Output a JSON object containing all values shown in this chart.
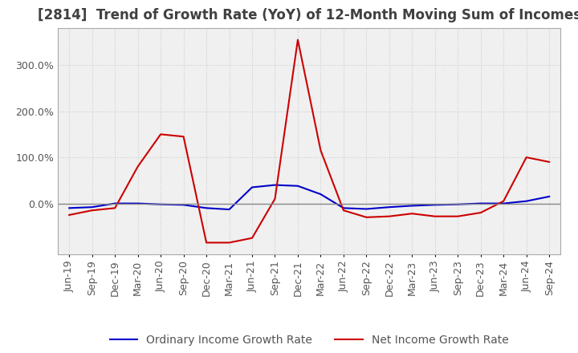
{
  "title": "[2814]  Trend of Growth Rate (YoY) of 12-Month Moving Sum of Incomes",
  "title_fontsize": 12,
  "background_color": "#ffffff",
  "plot_bg_color": "#f0f0f0",
  "grid_color": "#cccccc",
  "grid_style": ":",
  "x_labels": [
    "Jun-19",
    "Sep-19",
    "Dec-19",
    "Mar-20",
    "Jun-20",
    "Sep-20",
    "Dec-20",
    "Mar-21",
    "Jun-21",
    "Sep-21",
    "Dec-21",
    "Mar-22",
    "Jun-22",
    "Sep-22",
    "Dec-22",
    "Mar-23",
    "Jun-23",
    "Sep-23",
    "Dec-23",
    "Mar-24",
    "Jun-24",
    "Sep-24"
  ],
  "ordinary_income": [
    -10,
    -8,
    0,
    0,
    -2,
    -3,
    -10,
    -13,
    35,
    40,
    38,
    20,
    -10,
    -12,
    -8,
    -5,
    -3,
    -2,
    0,
    0,
    5,
    15
  ],
  "net_income": [
    -25,
    -15,
    -10,
    80,
    150,
    145,
    -85,
    -85,
    -75,
    10,
    355,
    115,
    -15,
    -30,
    -28,
    -22,
    -28,
    -28,
    -20,
    5,
    100,
    90
  ],
  "ylim": [
    -110,
    380
  ],
  "yticks": [
    0,
    100,
    200,
    300
  ],
  "ytick_labels": [
    "0.0%",
    "100.0%",
    "200.0%",
    "300.0%"
  ],
  "ordinary_color": "#0000cc",
  "net_color": "#cc0000",
  "ordinary_label": "Ordinary Income Growth Rate",
  "net_label": "Net Income Growth Rate",
  "legend_fontsize": 10,
  "tick_fontsize": 9,
  "title_color": "#404040"
}
